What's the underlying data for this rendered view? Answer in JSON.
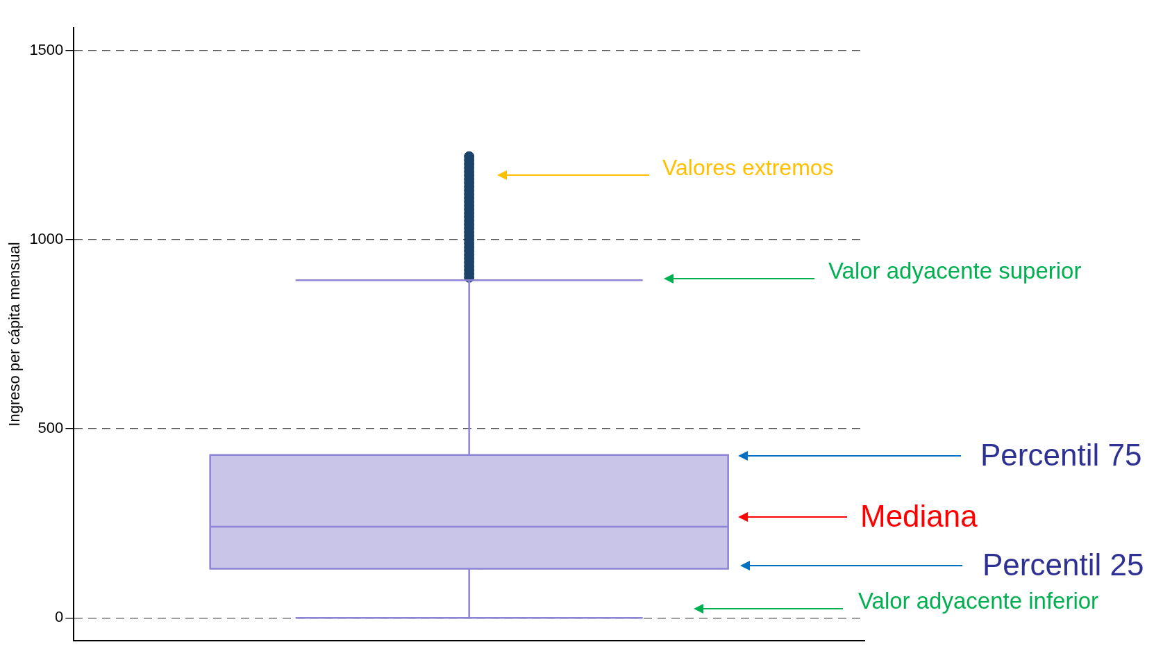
{
  "chart_data": {
    "type": "box",
    "ylabel": "Ingreso per cápita mensual",
    "categories": [
      null
    ],
    "boxes": [
      {
        "low": 0,
        "q1": 130,
        "median": 241,
        "q3": 431,
        "high": 893,
        "outliers": [
          900,
          910,
          920,
          930,
          940,
          950,
          960,
          970,
          980,
          990,
          1000,
          1010,
          1020,
          1030,
          1040,
          1050,
          1060,
          1070,
          1080,
          1090,
          1100,
          1110,
          1120,
          1130,
          1140,
          1150,
          1160,
          1170,
          1180,
          1190,
          1200,
          1210,
          1220
        ]
      }
    ],
    "color": "#c9c5e8",
    "ylim": [
      -60,
      1560
    ],
    "yticks": [
      0,
      500,
      1000,
      1500
    ],
    "grid": "y",
    "annotations": [
      "Valores extremos",
      "Valor adyacente superior",
      "Percentil 75",
      "Mediana",
      "Percentil 25",
      "Valor adyacente inferior"
    ]
  }
}
